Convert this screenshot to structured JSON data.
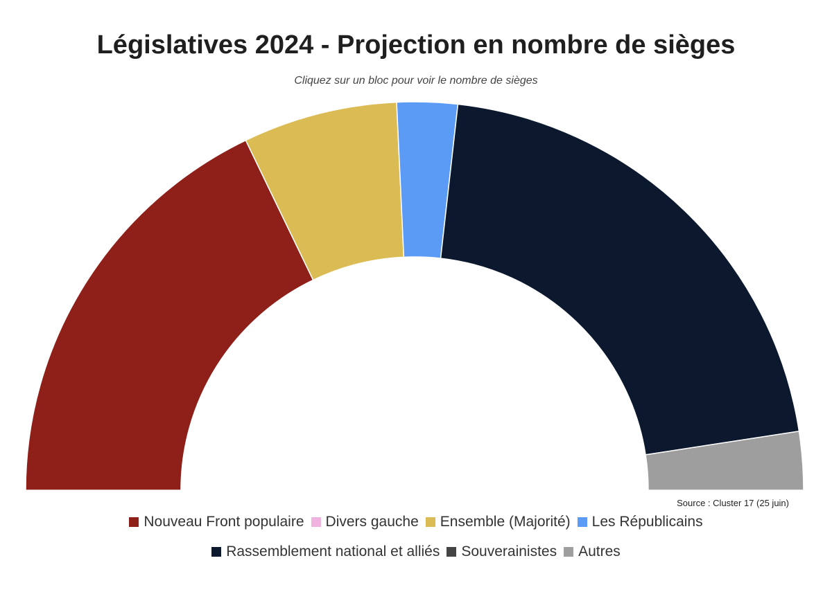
{
  "chart_data": {
    "type": "pie",
    "variant": "half-donut",
    "title": "Législatives 2024 - Projection en nombre de sièges",
    "subtitle": "Cliquez sur un bloc pour voir le nombre de sièges",
    "source": "Source : Cluster 17 (25 juin)",
    "legend_placement": "bottom",
    "series": [
      {
        "name": "Nouveau Front populaire",
        "value": 206,
        "color": "#8f1f19"
      },
      {
        "name": "Divers gauche",
        "value": 0,
        "color": "#f0b3e0"
      },
      {
        "name": "Ensemble (Majorité)",
        "value": 74,
        "color": "#dbbb53"
      },
      {
        "name": "Les Républicains",
        "value": 29,
        "color": "#5c9bf5"
      },
      {
        "name": "Rassemblement national et alliés",
        "value": 240,
        "color": "#0b182e"
      },
      {
        "name": "Souverainistes",
        "value": 0,
        "color": "#444444"
      },
      {
        "name": "Autres",
        "value": 28,
        "color": "#9e9e9e"
      }
    ]
  }
}
